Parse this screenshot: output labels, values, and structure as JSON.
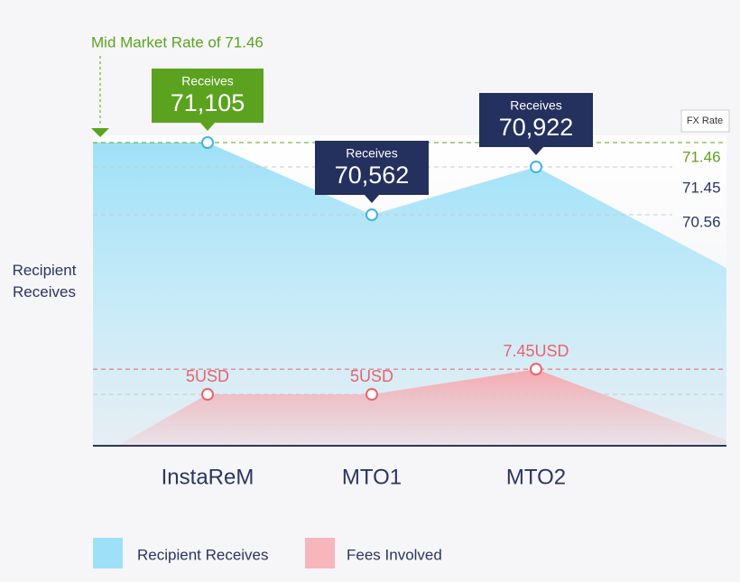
{
  "chart_data": {
    "type": "area",
    "annotation": "Mid Market Rate of 71.46",
    "y_label": "Recipient Receives",
    "callout_label": "Receives",
    "fx_rate_title": "FX Rate",
    "fx_rate_labels": [
      "71.46",
      "71.45",
      "70.56"
    ],
    "categories": [
      "InstaReM",
      "MTO1",
      "MTO2"
    ],
    "ylim": [
      68825,
      71105
    ],
    "y2lim": [
      0,
      29.5
    ],
    "series": [
      {
        "name": "Recipient Receives",
        "color": "#9ee0f7",
        "values": [
          71105,
          70562,
          70922
        ],
        "value_labels": [
          "71,105",
          "70,562",
          "70,922"
        ]
      },
      {
        "name": "Fees Involved",
        "color": "#f6b6bb",
        "axis": "y2",
        "values": [
          5,
          5,
          7.45
        ],
        "value_labels": [
          "5USD",
          "5USD",
          "7.45USD"
        ]
      }
    ]
  }
}
